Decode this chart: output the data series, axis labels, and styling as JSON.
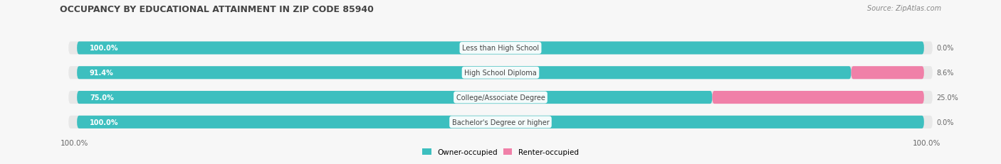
{
  "title": "OCCUPANCY BY EDUCATIONAL ATTAINMENT IN ZIP CODE 85940",
  "source": "Source: ZipAtlas.com",
  "categories": [
    "Less than High School",
    "High School Diploma",
    "College/Associate Degree",
    "Bachelor's Degree or higher"
  ],
  "owner_values": [
    100.0,
    91.4,
    75.0,
    100.0
  ],
  "renter_values": [
    0.0,
    8.6,
    25.0,
    0.0
  ],
  "owner_color": "#3dbfbf",
  "renter_color": "#f080a8",
  "row_bg_color": "#e8e8e8",
  "fig_bg_color": "#f7f7f7",
  "title_color": "#444444",
  "source_color": "#888888",
  "label_text_color": "#444444",
  "pct_inside_color": "#ffffff",
  "pct_outside_color": "#666666"
}
